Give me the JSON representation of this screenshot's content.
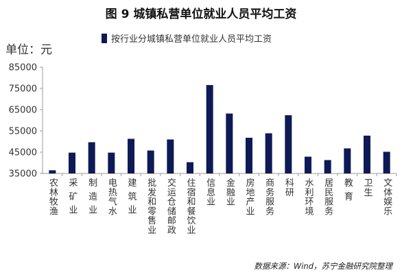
{
  "title": "图 9  城镇私营单位就业人员平均工资",
  "unit_label": "单位：元",
  "source": "数据来源：Wind，苏宁金融研究院整理",
  "colors": {
    "bar": "#0d1a55",
    "axis": "#999999"
  },
  "chart_data": {
    "type": "bar",
    "title": "图 9  城镇私营单位就业人员平均工资",
    "xlabel": "",
    "ylabel": "单位：元",
    "ylim": [
      35000,
      85000
    ],
    "yticks": [
      "35000",
      "45000",
      "55000",
      "65000",
      "75000",
      "85000"
    ],
    "ytick_values": [
      35000,
      45000,
      55000,
      65000,
      75000,
      85000
    ],
    "grid": false,
    "legend_position": "top",
    "categories": [
      "农林牧渔",
      "采  矿  业",
      "制  造  业",
      "电热气水",
      "建  筑  业",
      "批发和零售业",
      "交运仓储邮政",
      "住宿和餐饮业",
      "信息业",
      "金融业",
      "房地产业",
      "商务服务",
      "科研",
      "水利环境",
      "居民服务",
      "教  育",
      "卫生",
      "文体娱乐"
    ],
    "series": [
      {
        "name": "按行业分城镇私营单位就业人员平均工资",
        "values": [
          36500,
          44800,
          49700,
          44800,
          51300,
          45800,
          51000,
          40300,
          76600,
          63200,
          51800,
          53900,
          62400,
          42900,
          41300,
          46800,
          52800,
          45200
        ]
      }
    ]
  }
}
